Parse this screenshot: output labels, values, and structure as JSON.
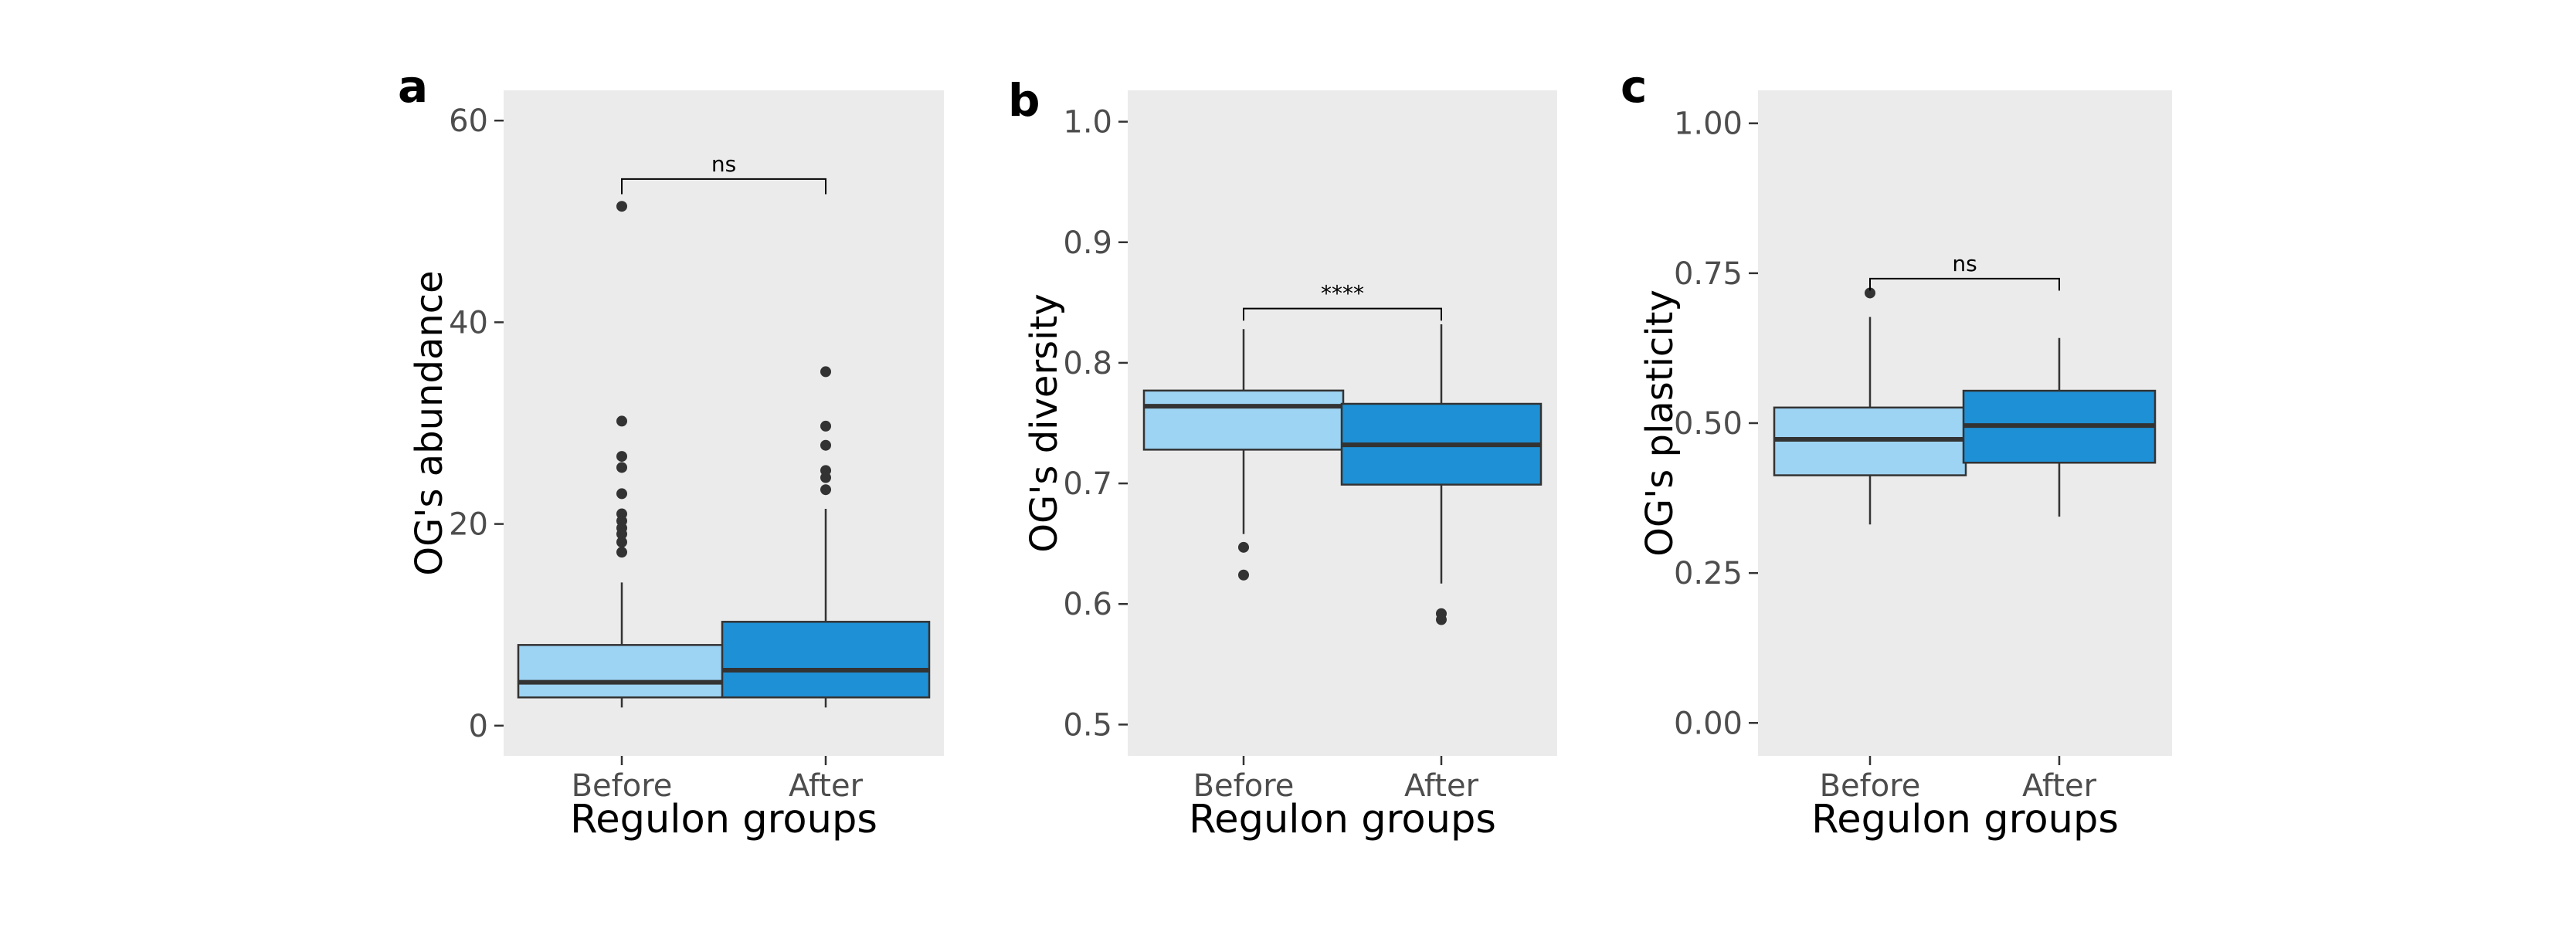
{
  "chart_data": [
    {
      "panel": "a",
      "type": "box",
      "ylabel": "OG's abundance",
      "xlabel": "Regulon groups",
      "ylim": [
        -3,
        63
      ],
      "yticks": [
        0,
        20,
        40,
        60
      ],
      "ytick_labels": [
        "0",
        "20",
        "40",
        "60"
      ],
      "grid": false,
      "categories": [
        "Before",
        "After"
      ],
      "colors": [
        "#9dd3f3",
        "#1e90d6"
      ],
      "boxes": [
        {
          "min": 1.8,
          "q1": 2.8,
          "median": 4.3,
          "q3": 8.0,
          "max": 14.2,
          "outliers": [
            51.5,
            30.2,
            26.7,
            25.6,
            23.0,
            21.0,
            20.3,
            19.6,
            19.0,
            18.2,
            17.2
          ]
        },
        {
          "min": 1.8,
          "q1": 2.8,
          "median": 5.5,
          "q3": 10.3,
          "max": 21.5,
          "outliers": [
            35.1,
            29.7,
            27.8,
            25.3,
            24.6,
            23.4
          ]
        }
      ],
      "significance": {
        "label": "ns",
        "y": 54.2,
        "tick_drop": 1.5
      }
    },
    {
      "panel": "b",
      "type": "box",
      "ylabel": "OG's diversity",
      "xlabel": "Regulon groups",
      "ylim": [
        0.474,
        1.026
      ],
      "yticks": [
        0.5,
        0.6,
        0.7,
        0.8,
        0.9,
        1.0
      ],
      "ytick_labels": [
        "0.5",
        "0.6",
        "0.7",
        "0.8",
        "0.9",
        "1.0"
      ],
      "grid": false,
      "categories": [
        "Before",
        "After"
      ],
      "colors": [
        "#9dd3f3",
        "#1e90d6"
      ],
      "boxes": [
        {
          "min": 0.658,
          "q1": 0.728,
          "median": 0.764,
          "q3": 0.777,
          "max": 0.828,
          "outliers": [
            0.647,
            0.624
          ]
        },
        {
          "min": 0.617,
          "q1": 0.699,
          "median": 0.732,
          "q3": 0.766,
          "max": 0.832,
          "outliers": [
            0.592,
            0.587
          ]
        }
      ],
      "significance": {
        "label": "****",
        "y": 0.845,
        "tick_drop": 0.01
      }
    },
    {
      "panel": "c",
      "type": "box",
      "ylabel": "OG's plasticity",
      "xlabel": "Regulon groups",
      "ylim": [
        -0.055,
        1.055
      ],
      "yticks": [
        0.0,
        0.25,
        0.5,
        0.75,
        1.0
      ],
      "ytick_labels": [
        "0.00",
        "0.25",
        "0.50",
        "0.75",
        "1.00"
      ],
      "grid": false,
      "categories": [
        "Before",
        "After"
      ],
      "colors": [
        "#9dd3f3",
        "#1e90d6"
      ],
      "boxes": [
        {
          "min": 0.331,
          "q1": 0.413,
          "median": 0.473,
          "q3": 0.526,
          "max": 0.677,
          "outliers": [
            0.717
          ]
        },
        {
          "min": 0.344,
          "q1": 0.434,
          "median": 0.496,
          "q3": 0.554,
          "max": 0.642,
          "outliers": []
        }
      ],
      "significance": {
        "label": "ns",
        "y": 0.741,
        "tick_drop": 0.02
      }
    }
  ]
}
